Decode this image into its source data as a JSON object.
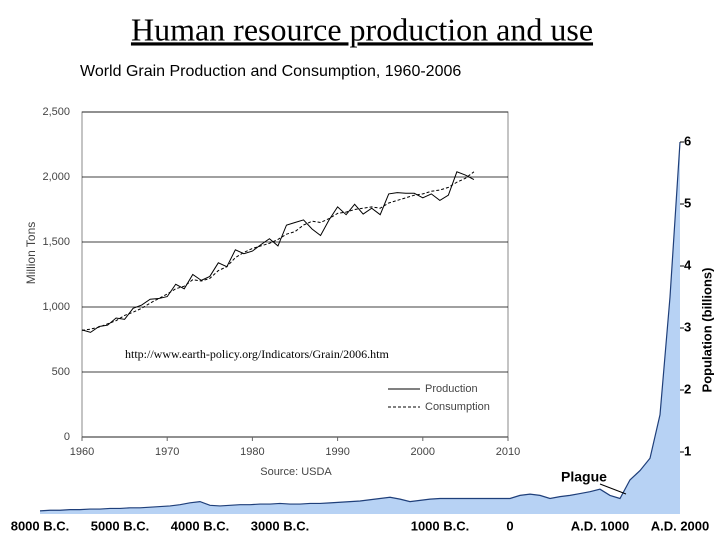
{
  "title": "Human resource production and use",
  "chart_data": [
    {
      "type": "line",
      "title": "World Grain Production and Consumption, 1960-2006",
      "y_label": "Million Tons",
      "source": "Source: USDA",
      "annotation": "http://www.earth-policy.org/Indicators/Grain/2006.htm",
      "x": [
        1960,
        1961,
        1962,
        1963,
        1964,
        1965,
        1966,
        1967,
        1968,
        1969,
        1970,
        1971,
        1972,
        1973,
        1974,
        1975,
        1976,
        1977,
        1978,
        1979,
        1980,
        1981,
        1982,
        1983,
        1984,
        1985,
        1986,
        1987,
        1988,
        1989,
        1990,
        1991,
        1992,
        1993,
        1994,
        1995,
        1996,
        1997,
        1998,
        1999,
        2000,
        2001,
        2002,
        2003,
        2004,
        2005,
        2006
      ],
      "series": [
        {
          "name": "Production",
          "color": "#000000",
          "dash": false,
          "values": [
            824,
            805,
            850,
            860,
            915,
            905,
            990,
            1015,
            1060,
            1065,
            1080,
            1175,
            1140,
            1250,
            1205,
            1235,
            1340,
            1310,
            1440,
            1410,
            1430,
            1480,
            1525,
            1470,
            1630,
            1650,
            1670,
            1600,
            1550,
            1670,
            1770,
            1710,
            1790,
            1715,
            1760,
            1710,
            1870,
            1880,
            1875,
            1875,
            1840,
            1870,
            1820,
            1860,
            2040,
            2015,
            1980
          ]
        },
        {
          "name": "Consumption",
          "color": "#000000",
          "dash": true,
          "values": [
            820,
            830,
            845,
            870,
            895,
            935,
            960,
            990,
            1030,
            1065,
            1100,
            1140,
            1160,
            1210,
            1200,
            1220,
            1280,
            1310,
            1380,
            1420,
            1450,
            1470,
            1490,
            1520,
            1560,
            1580,
            1630,
            1660,
            1650,
            1680,
            1720,
            1730,
            1750,
            1760,
            1770,
            1760,
            1800,
            1820,
            1840,
            1860,
            1870,
            1890,
            1900,
            1920,
            1960,
            1990,
            2040
          ]
        }
      ],
      "xlim": [
        1960,
        2010
      ],
      "xticks": [
        1960,
        1970,
        1980,
        1990,
        2000,
        2010
      ],
      "ylim": [
        0,
        2500
      ],
      "yticks": [
        0,
        500,
        {
          "value": 1000,
          "label": "1,000"
        },
        {
          "value": 1500,
          "label": "1,500"
        },
        {
          "value": 2000,
          "label": "2,000"
        },
        {
          "value": 2500,
          "label": "2,500"
        }
      ],
      "grid": true,
      "legend": "lower right"
    },
    {
      "type": "area",
      "y_label": "Population (billions)",
      "annotation": "Plague",
      "color": "#b7d2f4",
      "line_color": "#1f3f7a",
      "categories": [
        "8000 B.C.",
        null,
        null,
        null,
        null,
        null,
        null,
        null,
        "5000 B.C.",
        null,
        null,
        null,
        null,
        null,
        null,
        null,
        "4000 B.C.",
        null,
        null,
        null,
        null,
        null,
        null,
        null,
        "3000 B.C.",
        null,
        null,
        null,
        null,
        null,
        null,
        null,
        null,
        null,
        null,
        null,
        null,
        null,
        null,
        null,
        "1000 B.C.",
        null,
        null,
        null,
        null,
        null,
        null,
        "0",
        null,
        null,
        null,
        null,
        null,
        null,
        null,
        null,
        "A.D. 1000",
        null,
        null,
        null,
        null,
        null,
        null,
        null,
        "A.D. 2000"
      ],
      "values": [
        0.05,
        0.06,
        0.06,
        0.07,
        0.07,
        0.08,
        0.08,
        0.09,
        0.09,
        0.1,
        0.1,
        0.11,
        0.12,
        0.13,
        0.15,
        0.18,
        0.2,
        0.14,
        0.13,
        0.14,
        0.15,
        0.15,
        0.16,
        0.16,
        0.17,
        0.16,
        0.16,
        0.17,
        0.17,
        0.18,
        0.19,
        0.2,
        0.21,
        0.23,
        0.25,
        0.27,
        0.24,
        0.2,
        0.22,
        0.24,
        0.25,
        0.25,
        0.25,
        0.25,
        0.25,
        0.25,
        0.25,
        0.25,
        0.3,
        0.32,
        0.3,
        0.25,
        0.28,
        0.3,
        0.33,
        0.36,
        0.4,
        0.3,
        0.25,
        0.55,
        0.7,
        0.9,
        1.6,
        3.5,
        6.0
      ],
      "ylim": [
        0,
        6
      ],
      "yticks": [
        1,
        2,
        3,
        4,
        5,
        6
      ],
      "y_axis_side": "right"
    }
  ]
}
